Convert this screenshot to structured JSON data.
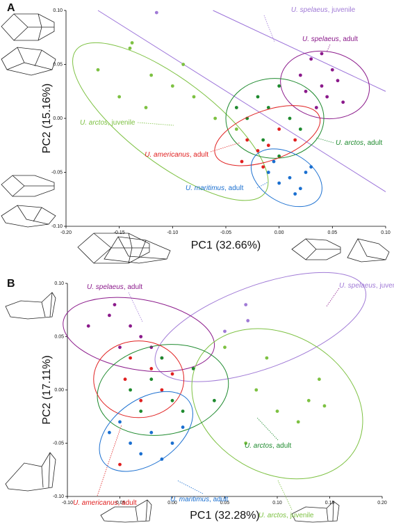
{
  "chart_data": [
    {
      "type": "scatter",
      "panel": "A",
      "xlabel": "PC1 (32.66%)",
      "ylabel": "PC2 (15.16%)",
      "xlim": [
        -0.2,
        0.1
      ],
      "ylim": [
        -0.1,
        0.1
      ],
      "xticks": [
        {
          "value": -0.2,
          "label": "-0.20"
        },
        {
          "value": -0.15,
          "label": "-0.15"
        },
        {
          "value": -0.1,
          "label": "-0.10"
        },
        {
          "value": -0.05,
          "label": "-0.05"
        },
        {
          "value": 0,
          "label": "0.00"
        },
        {
          "value": 0.05,
          "label": "0.05"
        },
        {
          "value": 0.1,
          "label": "0.10"
        }
      ],
      "yticks": [
        {
          "value": -0.1,
          "label": "-0.10"
        },
        {
          "value": -0.05,
          "label": "-0.05"
        },
        {
          "value": 0,
          "label": "0.00"
        },
        {
          "value": 0.05,
          "label": "0.05"
        },
        {
          "value": 0.1,
          "label": "0.10"
        }
      ],
      "lines": [
        {
          "color": "#9b72d9",
          "x": [
            -0.17,
            0.1
          ],
          "y": [
            0.1,
            -0.068
          ]
        },
        {
          "color": "#9b72d9",
          "x": [
            -0.062,
            0.1
          ],
          "y": [
            0.1,
            0.025
          ]
        }
      ],
      "series": [
        {
          "name": "U. spelaeus",
          "suffix": ", juvenile",
          "color": "#a07ad6",
          "x": [
            -0.115
          ],
          "y": [
            0.098
          ],
          "ellipse": null
        },
        {
          "name": "U. spelaeus",
          "suffix": ", adult",
          "color": "#8b1a8b",
          "x": [
            0.02,
            0.03,
            0.04,
            0.05,
            0.045,
            0.035,
            0.055,
            0.025,
            0.06,
            0.04
          ],
          "y": [
            0.04,
            0.055,
            0.03,
            0.045,
            0.02,
            0.01,
            0.035,
            0.025,
            0.015,
            0.06
          ],
          "ellipse": {
            "cx": 0.043,
            "cy": 0.031,
            "rx": 0.042,
            "ry": 0.031,
            "angle": 10
          }
        },
        {
          "name": "U. arctos",
          "suffix": ", juvenile",
          "color": "#7dc142",
          "x": [
            -0.17,
            -0.14,
            -0.138,
            -0.12,
            -0.1,
            -0.15,
            -0.08,
            -0.06,
            -0.09,
            -0.04,
            -0.125
          ],
          "y": [
            0.045,
            0.065,
            0.07,
            0.04,
            0.03,
            0.02,
            0.02,
            0.0,
            0.05,
            -0.01,
            0.01
          ],
          "ellipse": {
            "cx": -0.102,
            "cy": -0.003,
            "rx": 0.111,
            "ry": 0.039,
            "angle": 37
          }
        },
        {
          "name": "U. arctos",
          "suffix": ", adult",
          "color": "#1e8a2e",
          "x": [
            -0.02,
            -0.01,
            0.0,
            -0.03,
            0.01,
            -0.015,
            0.02,
            -0.04,
            0.0
          ],
          "y": [
            0.02,
            0.01,
            0.03,
            0.0,
            0.0,
            -0.02,
            -0.01,
            0.01,
            -0.035
          ],
          "ellipse": {
            "cx": -0.004,
            "cy": 0.0,
            "rx": 0.046,
            "ry": 0.037,
            "angle": 0
          }
        },
        {
          "name": "U. americanus",
          "suffix": ", adult",
          "color": "#e02020",
          "x": [
            -0.03,
            -0.02,
            -0.01,
            0.0,
            -0.035,
            -0.015,
            0.015
          ],
          "y": [
            -0.02,
            -0.03,
            -0.025,
            -0.01,
            -0.04,
            -0.045,
            -0.02
          ],
          "ellipse": {
            "cx": -0.011,
            "cy": -0.016,
            "rx": 0.052,
            "ry": 0.023,
            "angle": -20
          }
        },
        {
          "name": "U. maritimus",
          "suffix": ", adult",
          "color": "#1a6fd0",
          "x": [
            -0.01,
            0.0,
            0.01,
            0.02,
            0.03,
            -0.005,
            0.015,
            0.025
          ],
          "y": [
            -0.05,
            -0.06,
            -0.055,
            -0.065,
            -0.045,
            -0.04,
            -0.07,
            -0.05
          ],
          "ellipse": {
            "cx": 0.007,
            "cy": -0.055,
            "rx": 0.036,
            "ry": 0.023,
            "angle": 30
          }
        }
      ]
    },
    {
      "type": "scatter",
      "panel": "B",
      "xlabel": "PC1 (32.28%)",
      "ylabel": "PC2 (17.11%)",
      "xlim": [
        -0.1,
        0.2
      ],
      "ylim": [
        -0.1,
        0.1
      ],
      "xticks": [
        {
          "value": -0.1,
          "label": "-0.10"
        },
        {
          "value": -0.05,
          "label": "-0.05"
        },
        {
          "value": 0,
          "label": "0.00"
        },
        {
          "value": 0.05,
          "label": "0.05"
        },
        {
          "value": 0.1,
          "label": "0.10"
        },
        {
          "value": 0.15,
          "label": "0.15"
        },
        {
          "value": 0.2,
          "label": "0.20"
        }
      ],
      "yticks": [
        {
          "value": -0.1,
          "label": "-0.10"
        },
        {
          "value": -0.05,
          "label": "-0.05"
        },
        {
          "value": 0,
          "label": "0.00"
        },
        {
          "value": 0.05,
          "label": "0.05"
        },
        {
          "value": 0.1,
          "label": "0.10"
        }
      ],
      "lines": [],
      "series": [
        {
          "name": "U. spelaeus",
          "suffix": ", juvenile",
          "color": "#a07ad6",
          "x": [
            0.07,
            0.05,
            0.072
          ],
          "y": [
            0.08,
            0.055,
            0.065
          ],
          "ellipse": {
            "cx": 0.084,
            "cy": 0.059,
            "rx": 0.106,
            "ry": 0.039,
            "angle": -20
          }
        },
        {
          "name": "U. spelaeus",
          "suffix": ", adult",
          "color": "#8b1a8b",
          "x": [
            -0.08,
            -0.06,
            -0.05,
            -0.04,
            -0.03,
            -0.02,
            -0.055,
            -0.01
          ],
          "y": [
            0.06,
            0.07,
            0.04,
            0.06,
            0.05,
            0.04,
            0.08,
            0.03
          ],
          "ellipse": {
            "cx": -0.032,
            "cy": 0.052,
            "rx": 0.073,
            "ry": 0.033,
            "angle": 10
          }
        },
        {
          "name": "U. arctos",
          "suffix": ", juvenile",
          "color": "#7dc142",
          "x": [
            0.05,
            0.09,
            0.1,
            0.14,
            0.13,
            0.12,
            0.07,
            0.145,
            0.08
          ],
          "y": [
            0.04,
            0.03,
            -0.02,
            0.01,
            -0.01,
            -0.03,
            -0.05,
            -0.015,
            0.0
          ],
          "ellipse": {
            "cx": 0.1,
            "cy": -0.013,
            "rx": 0.086,
            "ry": 0.065,
            "angle": 30
          }
        },
        {
          "name": "U. arctos",
          "suffix": ", adult",
          "color": "#1e8a2e",
          "x": [
            -0.04,
            -0.02,
            0.0,
            0.02,
            0.01,
            -0.03,
            0.04,
            -0.01
          ],
          "y": [
            0.0,
            0.01,
            -0.01,
            0.02,
            -0.02,
            -0.02,
            -0.01,
            0.03
          ],
          "ellipse": {
            "cx": -0.009,
            "cy": 0.0,
            "rx": 0.063,
            "ry": 0.042,
            "angle": -10
          }
        },
        {
          "name": "U. americanus",
          "suffix": ", adult",
          "color": "#e02020",
          "x": [
            -0.04,
            -0.02,
            -0.01,
            0.0,
            -0.03,
            -0.045,
            -0.05
          ],
          "y": [
            0.03,
            0.02,
            0.0,
            0.015,
            -0.01,
            0.01,
            -0.07
          ],
          "ellipse": {
            "cx": -0.032,
            "cy": 0.01,
            "rx": 0.043,
            "ry": 0.036,
            "angle": 0
          }
        },
        {
          "name": "U. maritimus",
          "suffix": ", adult",
          "color": "#1a6fd0",
          "x": [
            -0.06,
            -0.04,
            -0.02,
            0.0,
            -0.03,
            -0.05,
            0.01,
            -0.01
          ],
          "y": [
            -0.04,
            -0.05,
            -0.04,
            -0.05,
            -0.06,
            -0.03,
            -0.035,
            -0.065
          ],
          "ellipse": {
            "cx": -0.025,
            "cy": -0.039,
            "rx": 0.05,
            "ry": 0.03,
            "angle": -35
          }
        }
      ]
    }
  ]
}
